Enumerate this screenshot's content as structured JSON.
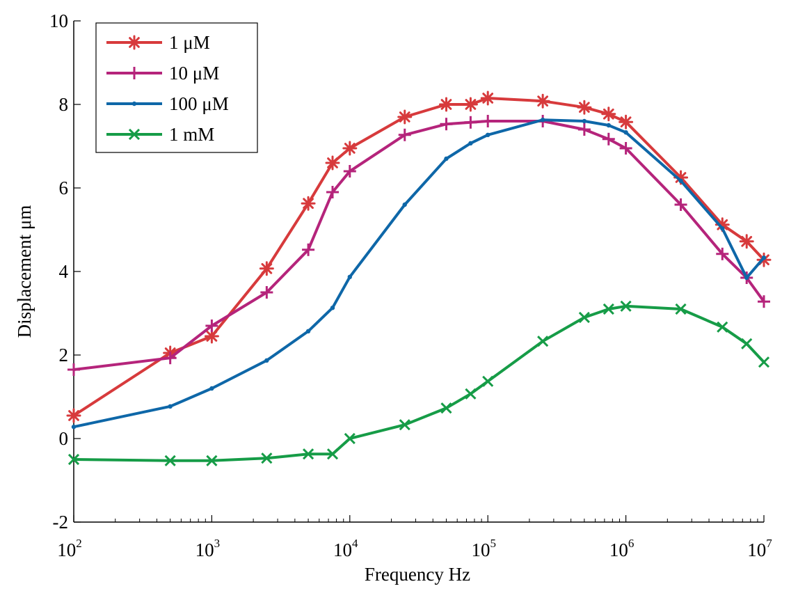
{
  "chart_data": {
    "type": "line",
    "title": "",
    "xlabel": "Frequency Hz",
    "ylabel": "Displacement μm",
    "xscale": "log",
    "xlim": [
      100,
      10000000
    ],
    "ylim": [
      -2,
      10
    ],
    "xticks": [
      {
        "base": "10",
        "exp": "2"
      },
      {
        "base": "10",
        "exp": "3"
      },
      {
        "base": "10",
        "exp": "4"
      },
      {
        "base": "10",
        "exp": "5"
      },
      {
        "base": "10",
        "exp": "6"
      },
      {
        "base": "10",
        "exp": "7"
      }
    ],
    "yticks": [
      "-2",
      "0",
      "2",
      "4",
      "6",
      "8",
      "10"
    ],
    "grid": false,
    "legend_position": "top-left",
    "x": [
      100,
      500,
      1000,
      2500,
      5000,
      7500,
      10000,
      25000,
      50000,
      75000,
      100000,
      250000,
      500000,
      750000,
      1000000,
      2500000,
      5000000,
      7500000,
      10000000
    ],
    "series": [
      {
        "name": "1 μM",
        "color": "#d73a3c",
        "marker": "asterisk",
        "values": [
          0.55,
          2.05,
          2.45,
          4.07,
          5.63,
          6.6,
          6.95,
          7.7,
          8.0,
          8.0,
          8.15,
          8.08,
          7.93,
          7.77,
          7.58,
          6.25,
          5.12,
          4.72,
          4.28
        ]
      },
      {
        "name": "10 μM",
        "color": "#b5247b",
        "marker": "plus",
        "values": [
          1.65,
          1.93,
          2.7,
          3.5,
          4.52,
          5.9,
          6.4,
          7.27,
          7.53,
          7.57,
          7.6,
          7.6,
          7.4,
          7.17,
          6.95,
          5.6,
          4.42,
          3.85,
          3.28
        ]
      },
      {
        "name": "100 μM",
        "color": "#0e67a8",
        "marker": "dot",
        "values": [
          0.28,
          0.77,
          1.2,
          1.87,
          2.57,
          3.13,
          3.87,
          5.6,
          6.7,
          7.07,
          7.27,
          7.63,
          7.6,
          7.5,
          7.33,
          6.17,
          5.03,
          3.85,
          4.33
        ]
      },
      {
        "name": "1 mM",
        "color": "#169c47",
        "marker": "x",
        "values": [
          -0.5,
          -0.53,
          -0.53,
          -0.47,
          -0.37,
          -0.37,
          0.0,
          0.33,
          0.73,
          1.07,
          1.37,
          2.33,
          2.9,
          3.1,
          3.17,
          3.1,
          2.67,
          2.27,
          1.83
        ]
      }
    ]
  }
}
